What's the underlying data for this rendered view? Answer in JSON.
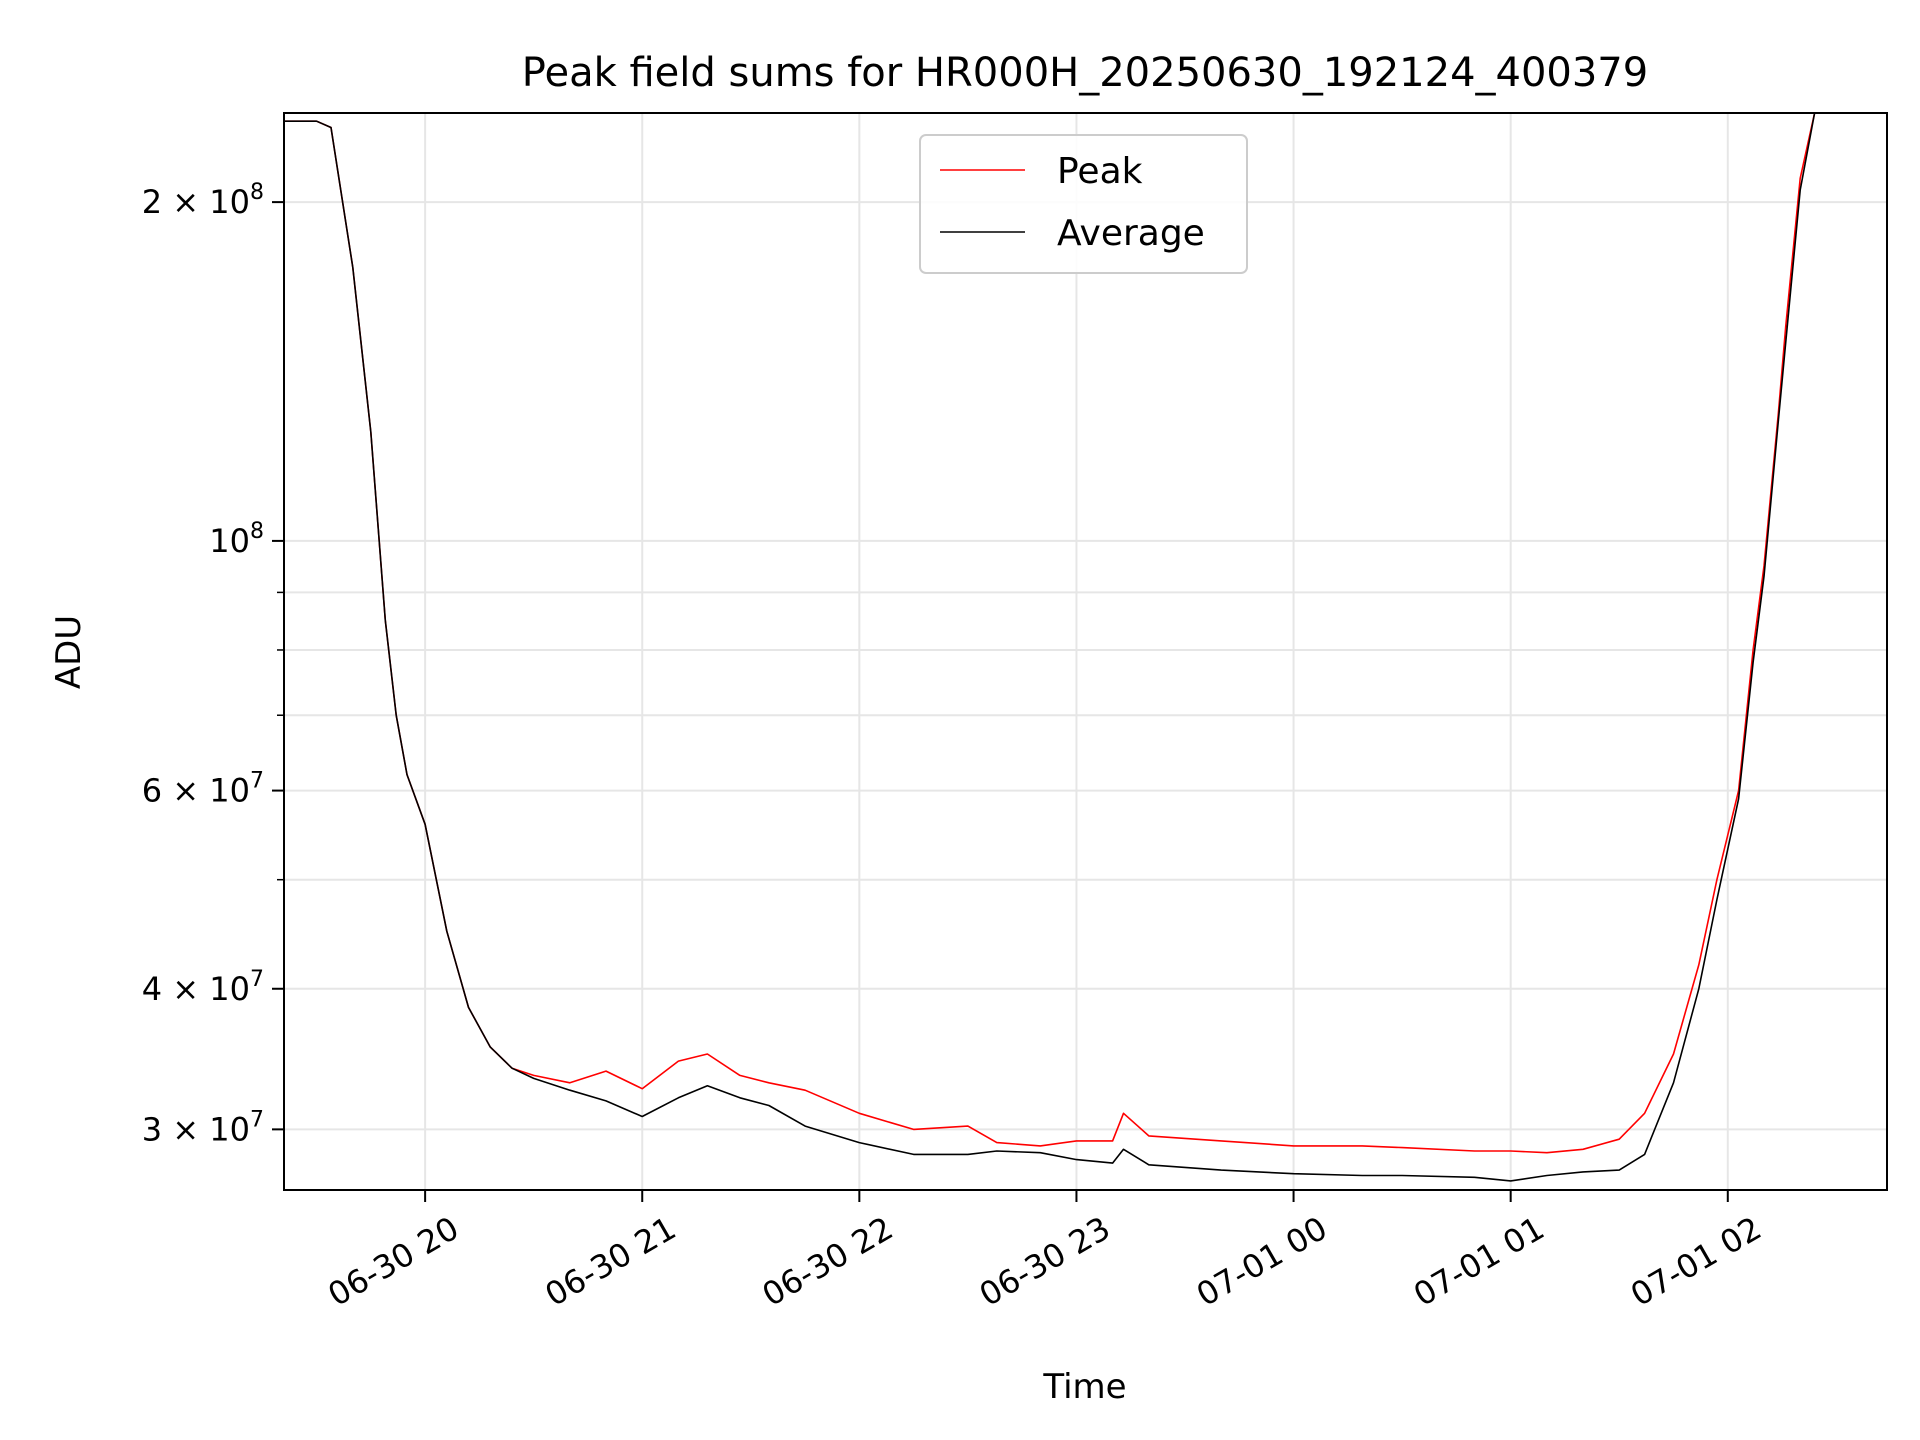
{
  "chart_data": {
    "type": "line",
    "title": "Peak field sums for HR000H_20250630_192124_400379",
    "xlabel": "Time",
    "ylabel": "ADU",
    "y_scale": "log",
    "ylim": [
      26500000,
      240000000
    ],
    "xlim": [
      "2025-06-30T19:21",
      "2025-07-01T02:44"
    ],
    "grid": true,
    "legend_position": "upper-center",
    "x_ticks": [
      {
        "t": "2025-06-30T20:00",
        "label": "06-30 20"
      },
      {
        "t": "2025-06-30T21:00",
        "label": "06-30 21"
      },
      {
        "t": "2025-06-30T22:00",
        "label": "06-30 22"
      },
      {
        "t": "2025-06-30T23:00",
        "label": "06-30 23"
      },
      {
        "t": "2025-07-01T00:00",
        "label": "07-01 00"
      },
      {
        "t": "2025-07-01T01:00",
        "label": "07-01 01"
      },
      {
        "t": "2025-07-01T02:00",
        "label": "07-01 02"
      }
    ],
    "y_ticks": [
      {
        "value": 30000000,
        "mantissa": "3",
        "exponent": "7"
      },
      {
        "value": 40000000,
        "mantissa": "4",
        "exponent": "7"
      },
      {
        "value": 60000000,
        "mantissa": "6",
        "exponent": "7"
      },
      {
        "value": 100000000,
        "mantissa": "",
        "exponent": "8"
      },
      {
        "value": 200000000,
        "mantissa": "2",
        "exponent": "8"
      }
    ],
    "y_minor_ticks": [
      50000000,
      70000000,
      80000000,
      90000000
    ],
    "series": [
      {
        "name": "Peak",
        "color": "#ff0000",
        "x": [
          "2025-06-30T19:21",
          "2025-06-30T19:30",
          "2025-06-30T19:34",
          "2025-06-30T19:40",
          "2025-06-30T19:45",
          "2025-06-30T19:49",
          "2025-06-30T19:52",
          "2025-06-30T19:55",
          "2025-06-30T20:00",
          "2025-06-30T20:06",
          "2025-06-30T20:12",
          "2025-06-30T20:18",
          "2025-06-30T20:24",
          "2025-06-30T20:30",
          "2025-06-30T20:40",
          "2025-06-30T20:50",
          "2025-06-30T21:00",
          "2025-06-30T21:10",
          "2025-06-30T21:18",
          "2025-06-30T21:27",
          "2025-06-30T21:35",
          "2025-06-30T21:45",
          "2025-06-30T22:00",
          "2025-06-30T22:15",
          "2025-06-30T22:30",
          "2025-06-30T22:38",
          "2025-06-30T22:50",
          "2025-06-30T23:00",
          "2025-06-30T23:10",
          "2025-06-30T23:13",
          "2025-06-30T23:20",
          "2025-06-30T23:40",
          "2025-07-01T00:00",
          "2025-07-01T00:19",
          "2025-07-01T00:30",
          "2025-07-01T00:50",
          "2025-07-01T01:00",
          "2025-07-01T01:10",
          "2025-07-01T01:20",
          "2025-07-01T01:30",
          "2025-07-01T01:37",
          "2025-07-01T01:45",
          "2025-07-01T01:52",
          "2025-07-01T01:57",
          "2025-07-01T02:03",
          "2025-07-01T02:07",
          "2025-07-01T02:10",
          "2025-07-01T02:14",
          "2025-07-01T02:16",
          "2025-07-01T02:20",
          "2025-07-01T02:24"
        ],
        "y": [
          236000000,
          236000000,
          233000000,
          175000000,
          125000000,
          85000000,
          70000000,
          62000000,
          56000000,
          45000000,
          38500000,
          35500000,
          34000000,
          33500000,
          33000000,
          33800000,
          32600000,
          34500000,
          35000000,
          33500000,
          33000000,
          32500000,
          31000000,
          30000000,
          30200000,
          29200000,
          29000000,
          29300000,
          29300000,
          31000000,
          29600000,
          29300000,
          29000000,
          29000000,
          28900000,
          28700000,
          28700000,
          28600000,
          28800000,
          29400000,
          31000000,
          35000000,
          42000000,
          50000000,
          60000000,
          80000000,
          95000000,
          130000000,
          155000000,
          210000000,
          240000000
        ]
      },
      {
        "name": "Average",
        "color": "#000000",
        "x": [
          "2025-06-30T19:21",
          "2025-06-30T19:30",
          "2025-06-30T19:34",
          "2025-06-30T19:40",
          "2025-06-30T19:45",
          "2025-06-30T19:49",
          "2025-06-30T19:52",
          "2025-06-30T19:55",
          "2025-06-30T20:00",
          "2025-06-30T20:06",
          "2025-06-30T20:12",
          "2025-06-30T20:18",
          "2025-06-30T20:24",
          "2025-06-30T20:30",
          "2025-06-30T20:40",
          "2025-06-30T20:50",
          "2025-06-30T21:00",
          "2025-06-30T21:10",
          "2025-06-30T21:18",
          "2025-06-30T21:27",
          "2025-06-30T21:35",
          "2025-06-30T21:45",
          "2025-06-30T22:00",
          "2025-06-30T22:15",
          "2025-06-30T22:30",
          "2025-06-30T22:38",
          "2025-06-30T22:50",
          "2025-06-30T23:00",
          "2025-06-30T23:10",
          "2025-06-30T23:13",
          "2025-06-30T23:20",
          "2025-06-30T23:40",
          "2025-07-01T00:00",
          "2025-07-01T00:19",
          "2025-07-01T00:30",
          "2025-07-01T00:50",
          "2025-07-01T01:00",
          "2025-07-01T01:10",
          "2025-07-01T01:20",
          "2025-07-01T01:30",
          "2025-07-01T01:37",
          "2025-07-01T01:45",
          "2025-07-01T01:52",
          "2025-07-01T01:57",
          "2025-07-01T02:03",
          "2025-07-01T02:07",
          "2025-07-01T02:10",
          "2025-07-01T02:14",
          "2025-07-01T02:16",
          "2025-07-01T02:20",
          "2025-07-01T02:24"
        ],
        "y": [
          236000000,
          236000000,
          233000000,
          175000000,
          125000000,
          85000000,
          70000000,
          62000000,
          56000000,
          45000000,
          38500000,
          35500000,
          34000000,
          33300000,
          32500000,
          31800000,
          30800000,
          32000000,
          32800000,
          32000000,
          31500000,
          30200000,
          29200000,
          28500000,
          28500000,
          28700000,
          28600000,
          28200000,
          28000000,
          28800000,
          27900000,
          27600000,
          27400000,
          27300000,
          27300000,
          27200000,
          27000000,
          27300000,
          27500000,
          27600000,
          28500000,
          33000000,
          40000000,
          48000000,
          59000000,
          78000000,
          93000000,
          128000000,
          150000000,
          205000000,
          240000000
        ]
      }
    ]
  }
}
